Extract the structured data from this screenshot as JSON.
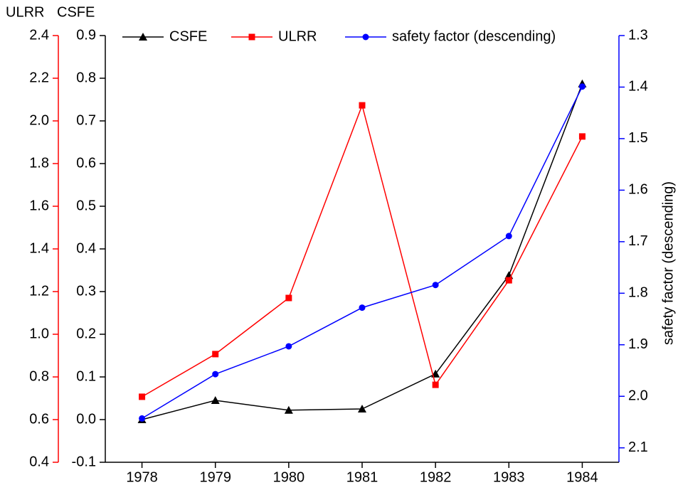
{
  "chart_data": {
    "type": "line",
    "categories": [
      "1978",
      "1979",
      "1980",
      "1981",
      "1982",
      "1983",
      "1984"
    ],
    "ylabel": "CSFE",
    "ylim": [
      -0.1,
      0.9
    ],
    "yticks": [
      -0.1,
      {
        "value": 0,
        "label": "0.0"
      },
      0.1,
      0.2,
      0.3,
      0.4,
      0.5,
      0.6,
      0.7,
      0.8,
      0.9
    ],
    "y2label": "safety factor (descending)",
    "y2lim": [
      2.128,
      1.3
    ],
    "y2ticks": [
      1.3,
      1.4,
      1.5,
      1.6,
      1.7,
      1.8,
      1.9,
      {
        "value": 2,
        "label": "2.0"
      },
      2.1
    ],
    "y2color": "#0000ff",
    "y3label": "ULRR",
    "y3lim": [
      0.4,
      2.4
    ],
    "y3ticks": [
      0.4,
      0.6,
      0.8,
      {
        "value": 1,
        "label": "1.0"
      },
      1.2,
      1.4,
      1.6,
      1.8,
      {
        "value": 2,
        "label": "2.0"
      },
      2.2,
      2.4
    ],
    "y3color": "#ff0000",
    "series": [
      {
        "name": "CSFE",
        "color": "#000000",
        "marker": "triangle",
        "axis": "y",
        "values": [
          0.0,
          0.045,
          0.022,
          0.025,
          0.107,
          0.338,
          0.787
        ]
      },
      {
        "name": "ULRR",
        "color": "#ff0000",
        "marker": "square",
        "axis": "y3",
        "values": [
          0.707,
          0.907,
          1.17,
          2.073,
          0.763,
          1.253,
          1.927
        ]
      },
      {
        "name": "safety factor (descending)",
        "color": "#0000ff",
        "marker": "circle",
        "axis": "y2",
        "values": [
          2.043,
          1.957,
          1.903,
          1.828,
          1.784,
          1.689,
          1.399
        ]
      }
    ]
  }
}
